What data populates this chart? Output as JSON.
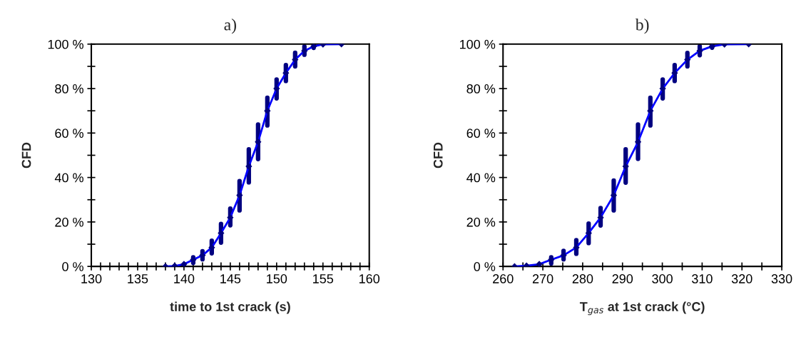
{
  "chart_data": [
    {
      "type": "line",
      "title": "a)",
      "xlabel": "time to 1st crack (s)",
      "ylabel": "CFD",
      "marker": "diamond",
      "line_style": "solid",
      "grid": false,
      "legend": false,
      "xlim": [
        130,
        160
      ],
      "xticks": [
        130,
        {
          "value": 131,
          "label": null
        },
        {
          "value": 132,
          "label": null
        },
        {
          "value": 133,
          "label": null
        },
        {
          "value": 134,
          "label": null
        },
        135,
        {
          "value": 136,
          "label": null
        },
        {
          "value": 137,
          "label": null
        },
        {
          "value": 138,
          "label": null
        },
        {
          "value": 139,
          "label": null
        },
        140,
        {
          "value": 141,
          "label": null
        },
        {
          "value": 142,
          "label": null
        },
        {
          "value": 143,
          "label": null
        },
        {
          "value": 144,
          "label": null
        },
        145,
        {
          "value": 146,
          "label": null
        },
        {
          "value": 147,
          "label": null
        },
        {
          "value": 148,
          "label": null
        },
        {
          "value": 149,
          "label": null
        },
        150,
        {
          "value": 151,
          "label": null
        },
        {
          "value": 152,
          "label": null
        },
        {
          "value": 153,
          "label": null
        },
        {
          "value": 154,
          "label": null
        },
        155,
        {
          "value": 156,
          "label": null
        },
        {
          "value": 157,
          "label": null
        },
        {
          "value": 158,
          "label": null
        },
        {
          "value": 159,
          "label": null
        },
        160
      ],
      "ylim": [
        0,
        100
      ],
      "yticks": [
        {
          "value": 0,
          "label": "0 %"
        },
        {
          "value": 10,
          "label": null
        },
        {
          "value": 20,
          "label": "20 %"
        },
        {
          "value": 30,
          "label": null
        },
        {
          "value": 40,
          "label": "40 %"
        },
        {
          "value": 50,
          "label": null
        },
        {
          "value": 60,
          "label": "60 %"
        },
        {
          "value": 70,
          "label": null
        },
        {
          "value": 80,
          "label": "80 %"
        },
        {
          "value": 90,
          "label": null
        },
        {
          "value": 100,
          "label": "100 %"
        }
      ],
      "series": [
        {
          "color": "#0000ff",
          "x": [
            138,
            139,
            140,
            141,
            142,
            143,
            144,
            145,
            146,
            147,
            148,
            149,
            150,
            151,
            152,
            153,
            154,
            155,
            157
          ],
          "values": [
            0,
            0.2,
            1,
            3,
            5,
            8.5,
            15,
            22,
            32,
            45,
            56,
            70,
            80,
            87,
            93,
            97,
            99,
            99.9,
            100
          ],
          "errors": [
            null,
            null,
            null,
            [
              1.6,
              4.1
            ],
            [
              3.2,
              6.8
            ],
            [
              5.9,
              11.6
            ],
            [
              10.7,
              19.1
            ],
            [
              18.5,
              26
            ],
            [
              25.2,
              38.4
            ],
            [
              37.8,
              52.7
            ],
            [
              48.3,
              63.8
            ],
            [
              63.4,
              75.9
            ],
            [
              75.6,
              84.1
            ],
            [
              83.4,
              90.6
            ],
            [
              90,
              96.1
            ],
            [
              95.2,
              98.9
            ],
            [
              98.3,
              100
            ],
            null,
            null
          ]
        }
      ]
    },
    {
      "type": "line",
      "title": "b)",
      "xlabel": "T$_{gas}$ at 1st crack (°C)",
      "ylabel": "CFD",
      "marker": "diamond",
      "line_style": "solid",
      "grid": false,
      "legend": false,
      "xlim": [
        260,
        330
      ],
      "xticks": [
        260,
        {
          "value": 265,
          "label": null
        },
        270,
        {
          "value": 275,
          "label": null
        },
        280,
        {
          "value": 285,
          "label": null
        },
        290,
        {
          "value": 295,
          "label": null
        },
        300,
        {
          "value": 305,
          "label": null
        },
        310,
        {
          "value": 315,
          "label": null
        },
        320,
        {
          "value": 325,
          "label": null
        },
        330
      ],
      "ylim": [
        0,
        100
      ],
      "yticks": [
        {
          "value": 0,
          "label": "0 %"
        },
        {
          "value": 10,
          "label": null
        },
        {
          "value": 20,
          "label": "20 %"
        },
        {
          "value": 30,
          "label": null
        },
        {
          "value": 40,
          "label": "40 %"
        },
        {
          "value": 50,
          "label": null
        },
        {
          "value": 60,
          "label": "60 %"
        },
        {
          "value": 70,
          "label": null
        },
        {
          "value": 80,
          "label": "80 %"
        },
        {
          "value": 90,
          "label": null
        },
        {
          "value": 100,
          "label": "100 %"
        }
      ],
      "series": [
        {
          "color": "#0000ff",
          "x": [
            262.9,
            265.9,
            269.1,
            272.1,
            275.2,
            278.4,
            281.5,
            284.5,
            287.8,
            290.8,
            293.9,
            297,
            300.1,
            303.1,
            306.3,
            309.4,
            312.5,
            315.6,
            321.7
          ],
          "values": [
            0,
            0.3,
            1,
            3,
            5,
            8.5,
            15,
            22,
            32,
            45,
            56,
            70,
            80,
            87,
            93,
            97,
            99,
            99.9,
            100
          ],
          "errors": [
            null,
            null,
            null,
            [
              1.3,
              4.1
            ],
            [
              3.2,
              7
            ],
            [
              5.7,
              11.8
            ],
            [
              10.5,
              19.3
            ],
            [
              18.4,
              26.3
            ],
            [
              25.2,
              38.6
            ],
            [
              37.7,
              52.7
            ],
            [
              48.4,
              63.8
            ],
            [
              63.4,
              75.9
            ],
            [
              75.6,
              84.1
            ],
            [
              83.4,
              90.6
            ],
            [
              90,
              96
            ],
            [
              95,
              99
            ],
            [
              98.4,
              99.9
            ],
            null,
            null
          ]
        }
      ]
    }
  ]
}
